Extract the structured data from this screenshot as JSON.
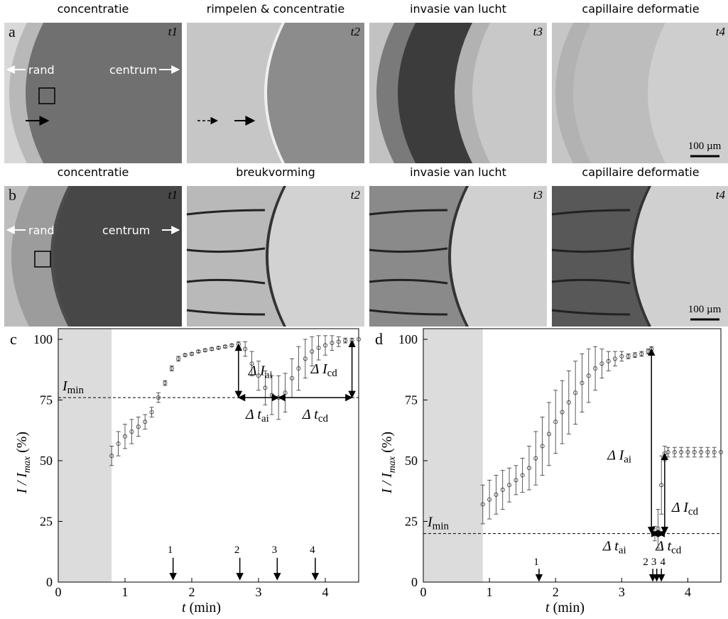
{
  "figure": {
    "rows": [
      {
        "label": "a",
        "panels": [
          {
            "title": "concentratie",
            "time": "t1"
          },
          {
            "title": "rimpelen & concentratie",
            "time": "t2"
          },
          {
            "title": "invasie van lucht",
            "time": "t3"
          },
          {
            "title": "capillaire deformatie",
            "time": "t4"
          }
        ]
      },
      {
        "label": "b",
        "panels": [
          {
            "title": "concentratie",
            "time": "t1"
          },
          {
            "title": "breukvorming",
            "time": "t2"
          },
          {
            "title": "invasie van lucht",
            "time": "t3"
          },
          {
            "title": "capillaire deformatie",
            "time": "t4"
          }
        ]
      }
    ],
    "rand": "rand",
    "centrum": "centrum",
    "scale_bar": "100 µm"
  },
  "chart_data": [
    {
      "type": "errorbar",
      "panel_label": "c",
      "color": "#333333",
      "x": [
        0.8,
        0.9,
        1.0,
        1.1,
        1.2,
        1.3,
        1.4,
        1.5,
        1.6,
        1.7,
        1.8,
        1.9,
        2.0,
        2.1,
        2.2,
        2.3,
        2.4,
        2.5,
        2.6,
        2.7,
        2.8,
        2.9,
        3.0,
        3.1,
        3.2,
        3.3,
        3.4,
        3.5,
        3.6,
        3.7,
        3.8,
        3.9,
        4.0,
        4.1,
        4.2,
        4.3,
        4.4,
        4.5
      ],
      "values": [
        52,
        57,
        60,
        62,
        64,
        66,
        70,
        76,
        82,
        88,
        92,
        93.5,
        94,
        95,
        95.5,
        96,
        96.5,
        97,
        97.5,
        98,
        96,
        90,
        85,
        80,
        77,
        76,
        78,
        84,
        88,
        92,
        95,
        96.5,
        97.5,
        98.5,
        99,
        99.5,
        99.5,
        100
      ],
      "errors": [
        4,
        5,
        5,
        5,
        4,
        3,
        2,
        2,
        1,
        1,
        1,
        0.5,
        0.5,
        0.5,
        0.5,
        0.5,
        0.5,
        0.5,
        0.5,
        1,
        3,
        5,
        6,
        7,
        8,
        9,
        8,
        8,
        9,
        8,
        6,
        5,
        4,
        3,
        2,
        1,
        1,
        0
      ],
      "xlim": [
        0,
        4.5
      ],
      "ylim": [
        0,
        100
      ],
      "xticks": [
        0,
        1,
        2,
        3,
        4
      ],
      "yticks": [
        0,
        25,
        50,
        75,
        100
      ],
      "xlabel": [
        "t",
        " (min)"
      ],
      "ylabel": [
        "I / I",
        "max",
        " (%)"
      ],
      "shaded_until": 0.8,
      "imin": 76,
      "imin_label": [
        "I",
        "min"
      ],
      "events": {
        "x": [
          1.72,
          2.72,
          3.28,
          3.85
        ],
        "labels": [
          "1",
          "2",
          "3",
          "4"
        ]
      },
      "annotations": [
        {
          "text": "Δ I",
          "sub": "ai"
        },
        {
          "text": "Δ I",
          "sub": "cd"
        },
        {
          "text": "Δ t",
          "sub": "ai"
        },
        {
          "text": "Δ t",
          "sub": "cd"
        }
      ]
    },
    {
      "type": "errorbar",
      "panel_label": "d",
      "color": "#333333",
      "x": [
        0.9,
        1.0,
        1.1,
        1.2,
        1.3,
        1.4,
        1.5,
        1.6,
        1.7,
        1.8,
        1.9,
        2.0,
        2.1,
        2.2,
        2.3,
        2.4,
        2.5,
        2.6,
        2.7,
        2.8,
        2.9,
        3.0,
        3.1,
        3.2,
        3.3,
        3.4,
        3.45,
        3.5,
        3.55,
        3.6,
        3.65,
        3.7,
        3.8,
        3.9,
        4.0,
        4.1,
        4.2,
        4.3,
        4.4,
        4.5
      ],
      "values": [
        32,
        34,
        36,
        38,
        40,
        42,
        44,
        47,
        51,
        56,
        61,
        66,
        70,
        74,
        78,
        82,
        85,
        88,
        90,
        91,
        92,
        93,
        93,
        93.5,
        94,
        95,
        96,
        20,
        22,
        40,
        53,
        53.5,
        53.5,
        53.5,
        53.5,
        53.5,
        53.5,
        53.5,
        53.5,
        53.5
      ],
      "errors": [
        8,
        8,
        8,
        8,
        7,
        6,
        7,
        9,
        11,
        12,
        13,
        13,
        13,
        13,
        13,
        12,
        11,
        9,
        6,
        4,
        3,
        2,
        1,
        1,
        1,
        1,
        1,
        3,
        8,
        12,
        3,
        2,
        2,
        2,
        2,
        2,
        2,
        2,
        2,
        0
      ],
      "xlim": [
        0,
        4.5
      ],
      "ylim": [
        0,
        100
      ],
      "xticks": [
        0,
        1,
        2,
        3,
        4
      ],
      "yticks": [
        0,
        25,
        50,
        75,
        100
      ],
      "xlabel": [
        "t",
        " (min)"
      ],
      "ylabel": [
        "I / I",
        "max",
        " (%)"
      ],
      "shaded_until": 0.9,
      "imin": 20,
      "imin_label": [
        "I",
        "min"
      ],
      "events": {
        "x": [
          1.75,
          3.47,
          3.53,
          3.6
        ],
        "labels": [
          "1",
          "2",
          "3",
          "4"
        ]
      },
      "annotations": [
        {
          "text": "Δ I",
          "sub": "ai"
        },
        {
          "text": "Δ I",
          "sub": "cd"
        },
        {
          "text": "Δ t",
          "sub": "ai"
        },
        {
          "text": "Δ t",
          "sub": "cd"
        }
      ]
    }
  ]
}
